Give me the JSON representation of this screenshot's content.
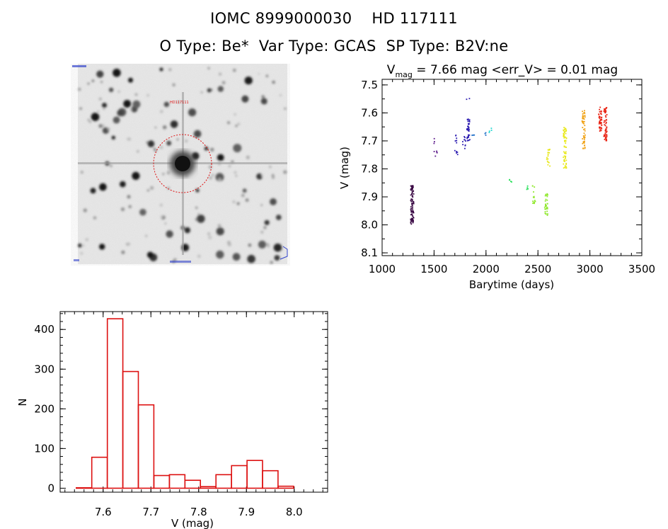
{
  "header": {
    "line1": {
      "iomc": "IOMC 8999000030",
      "hd": "HD 117111"
    },
    "line2": {
      "otype": "O Type: Be*",
      "vartype": "Var Type: GCAS",
      "sptype": "SP Type: B2V:ne"
    }
  },
  "colors": {
    "histogram": "#dd1111",
    "aperture": "#dd1111",
    "lightcurve_cmap": [
      "#3b0a45",
      "#5b1a8a",
      "#2a1ab0",
      "#1f6fc8",
      "#1fd6d0",
      "#28e05a",
      "#8ee82a",
      "#e8e81a",
      "#f0a010",
      "#e82010"
    ]
  },
  "chart_data": [
    {
      "type": "scatter",
      "title_main": "V",
      "title_sub": "mag",
      "title_rest": " = 7.66 mag <err_V> = 0.01 mag",
      "xlabel": "Barytime (days)",
      "ylabel": "V (mag)",
      "xlim": [
        1000,
        3500
      ],
      "ylim": [
        8.11,
        7.48
      ],
      "y_inverted": true,
      "xticks": [
        1000,
        1500,
        2000,
        2500,
        3000,
        3500
      ],
      "yticks": [
        "7.5",
        "7.6",
        "7.7",
        "7.8",
        "7.9",
        "8.0",
        "8.1"
      ],
      "color_by": "time",
      "groups": [
        {
          "x": 1290,
          "y_min": 7.86,
          "y_max": 8.0,
          "n": 90
        },
        {
          "x": 1510,
          "y_min": 7.69,
          "y_max": 7.71,
          "n": 3
        },
        {
          "x": 1515,
          "y_min": 7.73,
          "y_max": 7.76,
          "n": 5
        },
        {
          "x": 1710,
          "y_min": 7.68,
          "y_max": 7.71,
          "n": 6
        },
        {
          "x": 1715,
          "y_min": 7.72,
          "y_max": 7.75,
          "n": 5
        },
        {
          "x": 1790,
          "y_min": 7.68,
          "y_max": 7.73,
          "n": 10
        },
        {
          "x": 1830,
          "y_min": 7.62,
          "y_max": 7.7,
          "n": 35
        },
        {
          "x": 1828,
          "y_min": 7.54,
          "y_max": 7.56,
          "n": 2
        },
        {
          "x": 1880,
          "y_min": 7.67,
          "y_max": 7.69,
          "n": 3
        },
        {
          "x": 2000,
          "y_min": 7.67,
          "y_max": 7.68,
          "n": 3
        },
        {
          "x": 2040,
          "y_min": 7.65,
          "y_max": 7.67,
          "n": 4
        },
        {
          "x": 2235,
          "y_min": 7.83,
          "y_max": 7.85,
          "n": 4
        },
        {
          "x": 2390,
          "y_min": 7.86,
          "y_max": 7.88,
          "n": 4
        },
        {
          "x": 2460,
          "y_min": 7.86,
          "y_max": 7.93,
          "n": 14
        },
        {
          "x": 2580,
          "y_min": 7.88,
          "y_max": 7.97,
          "n": 30
        },
        {
          "x": 2600,
          "y_min": 7.73,
          "y_max": 7.79,
          "n": 18
        },
        {
          "x": 2760,
          "y_min": 7.65,
          "y_max": 7.8,
          "n": 60
        },
        {
          "x": 2940,
          "y_min": 7.59,
          "y_max": 7.73,
          "n": 55
        },
        {
          "x": 3100,
          "y_min": 7.58,
          "y_max": 7.67,
          "n": 45
        },
        {
          "x": 3150,
          "y_min": 7.58,
          "y_max": 7.7,
          "n": 55
        }
      ]
    },
    {
      "type": "histogram",
      "xlabel": "V (mag)",
      "ylabel": "N",
      "xlim": [
        7.51,
        8.07
      ],
      "ylim": [
        -10,
        445
      ],
      "xticks": [
        "7.6",
        "7.7",
        "7.8",
        "7.9",
        "8.0"
      ],
      "yticks": [
        "0",
        "100",
        "200",
        "300",
        "400"
      ],
      "bin_width": 0.0325,
      "bins": [
        {
          "x": 7.56,
          "n": 1
        },
        {
          "x": 7.5925,
          "n": 78
        },
        {
          "x": 7.625,
          "n": 427
        },
        {
          "x": 7.6575,
          "n": 294
        },
        {
          "x": 7.69,
          "n": 210
        },
        {
          "x": 7.7225,
          "n": 32
        },
        {
          "x": 7.755,
          "n": 34
        },
        {
          "x": 7.7875,
          "n": 20
        },
        {
          "x": 7.82,
          "n": 4
        },
        {
          "x": 7.8525,
          "n": 34
        },
        {
          "x": 7.885,
          "n": 57
        },
        {
          "x": 7.9175,
          "n": 70
        },
        {
          "x": 7.95,
          "n": 44
        },
        {
          "x": 7.9825,
          "n": 5
        }
      ]
    }
  ],
  "finder": {
    "aperture_shape": "dashed-circle",
    "target_label": "HD117111"
  }
}
